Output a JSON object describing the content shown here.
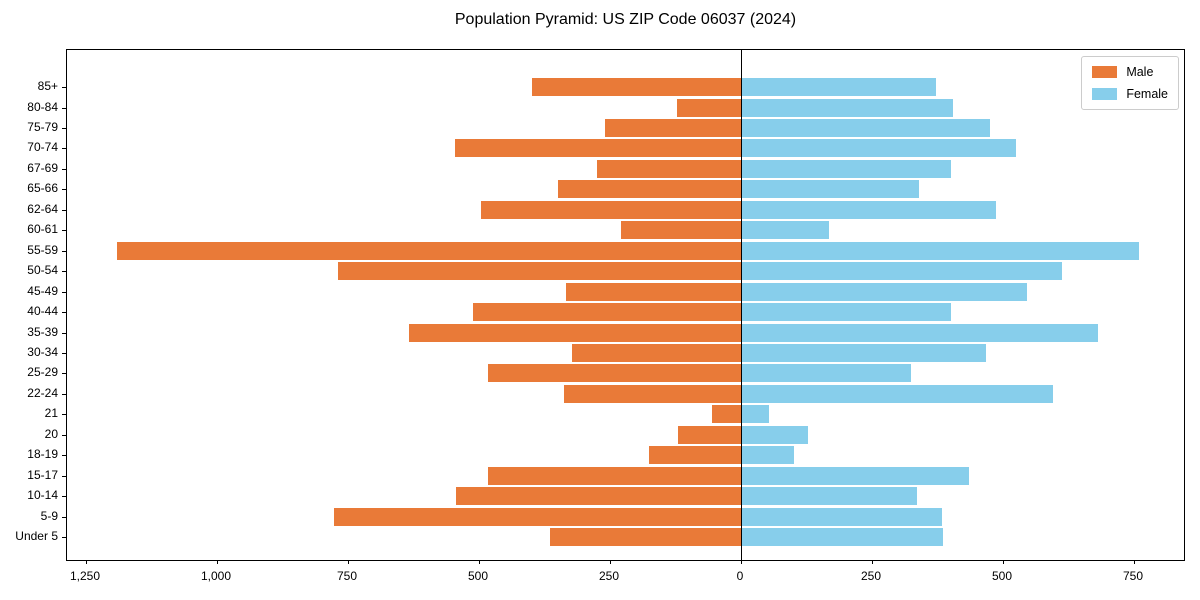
{
  "title": "Population Pyramid: US ZIP Code 06037 (2024)",
  "legend": {
    "male_label": "Male",
    "female_label": "Female"
  },
  "colors": {
    "male": "#e97a38",
    "female": "#87ceeb",
    "axis": "#000000",
    "legend_border": "#cccccc"
  },
  "chart_data": {
    "type": "bar",
    "subtype": "population-pyramid-horizontal",
    "title": "Population Pyramid: US ZIP Code 06037 (2024)",
    "categories_top_to_bottom": [
      "85+",
      "80-84",
      "75-79",
      "70-74",
      "67-69",
      "65-66",
      "62-64",
      "60-61",
      "55-59",
      "50-54",
      "45-49",
      "40-44",
      "35-39",
      "30-34",
      "25-29",
      "22-24",
      "21",
      "20",
      "18-19",
      "15-17",
      "10-14",
      "5-9",
      "Under 5"
    ],
    "series": [
      {
        "name": "Male",
        "side": "left",
        "values": [
          398,
          122,
          260,
          546,
          275,
          350,
          496,
          230,
          1191,
          770,
          334,
          512,
          634,
          322,
          482,
          337,
          56,
          121,
          176,
          482,
          544,
          776,
          365
        ]
      },
      {
        "name": "Female",
        "side": "right",
        "values": [
          370,
          403,
          474,
          522,
          399,
          338,
          484,
          166,
          758,
          611,
          543,
          399,
          680,
          465,
          323,
          594,
          52,
          125,
          100,
          434,
          334,
          381,
          383
        ]
      }
    ],
    "x_tick_labels": [
      "1,250",
      "1,000",
      "750",
      "500",
      "250",
      "0",
      "250",
      "500",
      "750"
    ],
    "x_tick_values": [
      -1250,
      -1000,
      -750,
      -500,
      -250,
      0,
      250,
      500,
      750
    ],
    "xlim": [
      -1286,
      849
    ],
    "xlabel": "",
    "ylabel": "",
    "grid": false,
    "legend_position": "upper right"
  }
}
